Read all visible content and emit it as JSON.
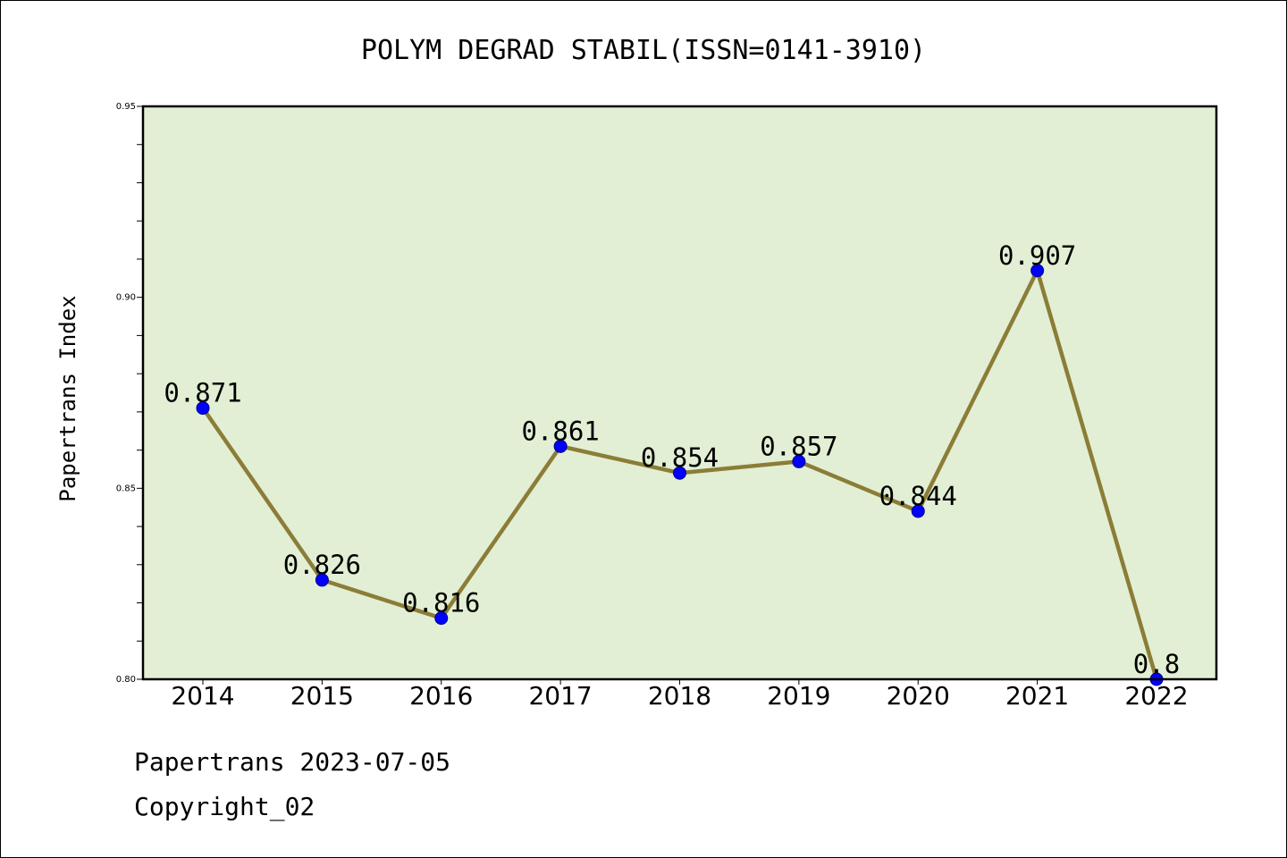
{
  "chart_data": {
    "type": "line",
    "title": "POLYM DEGRAD STABIL(ISSN=0141-3910)",
    "ylabel": "Papertrans Index",
    "xlabel": "",
    "categories": [
      "2014",
      "2015",
      "2016",
      "2017",
      "2018",
      "2019",
      "2020",
      "2021",
      "2022"
    ],
    "series": [
      {
        "values": [
          0.871,
          0.826,
          0.816,
          0.861,
          0.854,
          0.857,
          0.844,
          0.907,
          0.8
        ],
        "labels": [
          "0.871",
          "0.826",
          "0.816",
          "0.861",
          "0.854",
          "0.857",
          "0.844",
          "0.907",
          "0.8"
        ]
      }
    ],
    "ylim": [
      0.8,
      0.95
    ],
    "yticks": [
      0.8,
      0.85,
      0.9,
      0.95
    ],
    "ytick_labels": [
      "0.80",
      "0.85",
      "0.90",
      "0.95"
    ],
    "minor_ytick_step": 0.01,
    "grid": false,
    "legend": "none",
    "colors": {
      "plot_background": "#e2efd4",
      "line": "#8b7d37",
      "marker": "#0000ff",
      "marker_edge": "#00008b",
      "axes": "#000000"
    }
  },
  "footer": {
    "date_line": "Papertrans 2023-07-05",
    "copyright_line": "Copyright_02"
  }
}
